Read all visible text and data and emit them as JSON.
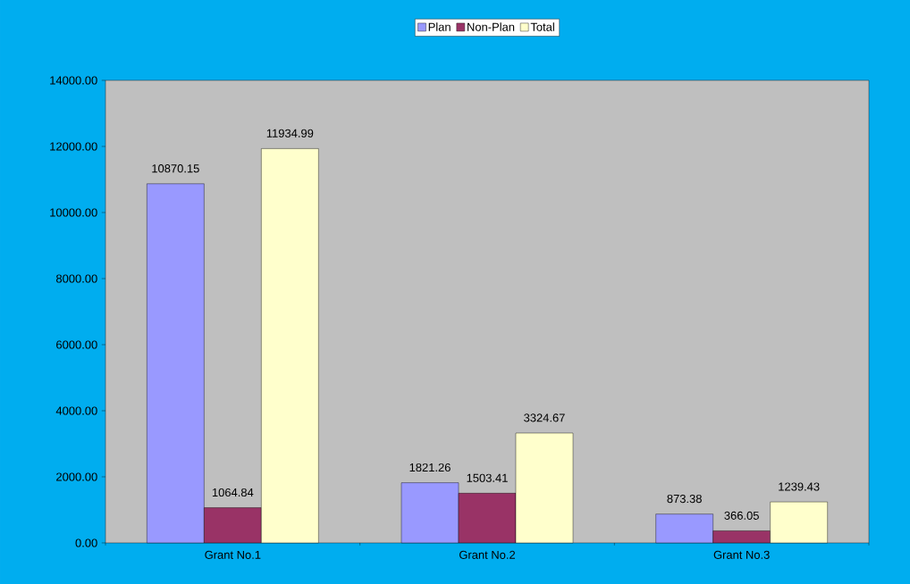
{
  "chart_data": {
    "type": "bar",
    "categories": [
      "Grant No.1",
      "Grant No.2",
      "Grant No.3"
    ],
    "series": [
      {
        "name": "Plan",
        "color": "#9999ff",
        "values": [
          10870.15,
          1821.26,
          873.38
        ]
      },
      {
        "name": "Non-Plan",
        "color": "#993366",
        "values": [
          1064.84,
          1503.41,
          366.05
        ]
      },
      {
        "name": "Total",
        "color": "#ffffcc",
        "values": [
          11934.99,
          3324.67,
          1239.43
        ]
      }
    ],
    "ylim": [
      0,
      14000
    ],
    "yticks": [
      {
        "value": 0,
        "label": "0.00"
      },
      {
        "value": 2000,
        "label": "2000.00"
      },
      {
        "value": 4000,
        "label": "4000.00"
      },
      {
        "value": 6000,
        "label": "6000.00"
      },
      {
        "value": 8000,
        "label": "8000.00"
      },
      {
        "value": 10000,
        "label": "10000.00"
      },
      {
        "value": 12000,
        "label": "12000.00"
      },
      {
        "value": 14000,
        "label": "14000.00"
      }
    ],
    "data_labels": true,
    "legend": "top"
  }
}
